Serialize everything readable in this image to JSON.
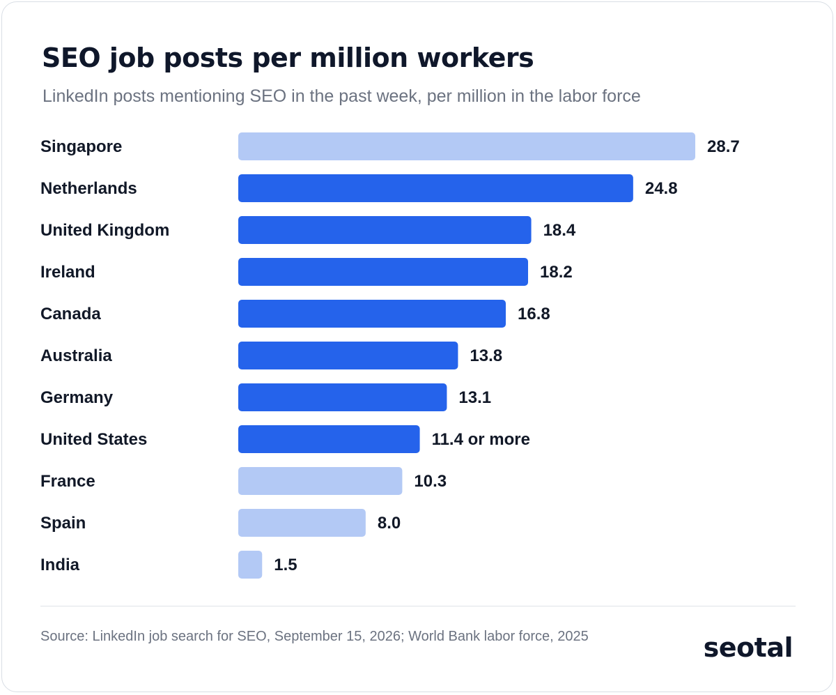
{
  "chart_data": {
    "type": "bar",
    "orientation": "horizontal",
    "title": "SEO job posts per million workers",
    "subtitle": "LinkedIn posts mentioning SEO in the past week, per million in the labor force",
    "categories": [
      "Singapore",
      "Netherlands",
      "United Kingdom",
      "Ireland",
      "Canada",
      "Australia",
      "Germany",
      "United States",
      "France",
      "Spain",
      "India"
    ],
    "values": [
      28.7,
      24.8,
      18.4,
      18.2,
      16.8,
      13.8,
      13.1,
      11.4,
      10.3,
      8.0,
      1.5
    ],
    "value_labels": [
      "28.7",
      "24.8",
      "18.4",
      "18.2",
      "16.8",
      "13.8",
      "13.1",
      "11.4 or more",
      "10.3",
      "8.0",
      "1.5"
    ],
    "bar_colors": [
      "#b3c9f5",
      "#2563eb",
      "#2563eb",
      "#2563eb",
      "#2563eb",
      "#2563eb",
      "#2563eb",
      "#2563eb",
      "#b3c9f5",
      "#b3c9f5",
      "#b3c9f5"
    ],
    "xlim": [
      0,
      28.7
    ],
    "grid": false,
    "legend": "none",
    "xlabel": "",
    "ylabel": ""
  },
  "footer": {
    "source": "Source: LinkedIn job search for SEO, September 15, 2026; World Bank labor force, 2025",
    "logo": "seotal"
  },
  "colors": {
    "highlight_bar": "#2563eb",
    "muted_bar": "#b3c9f5",
    "text": "#111827",
    "subtle_text": "#6b7280"
  }
}
